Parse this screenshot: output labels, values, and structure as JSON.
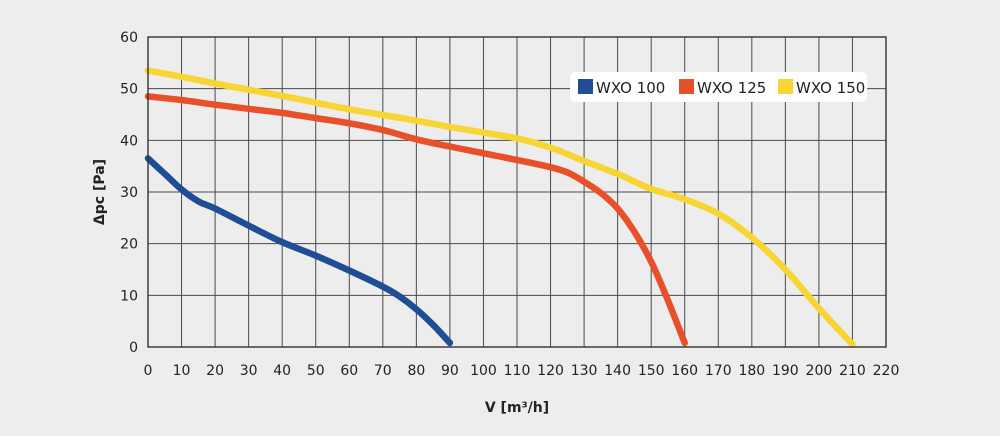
{
  "chart_data": {
    "type": "line",
    "title": "",
    "xlabel": "V [m³/h]",
    "ylabel": "Δpc [Pa]",
    "xlim": [
      0,
      220
    ],
    "ylim": [
      0,
      60
    ],
    "x_ticks": [
      0,
      10,
      20,
      30,
      40,
      50,
      60,
      70,
      80,
      90,
      100,
      110,
      120,
      130,
      140,
      150,
      160,
      170,
      180,
      190,
      200,
      210,
      220
    ],
    "y_ticks": [
      0,
      10,
      20,
      30,
      40,
      50,
      60
    ],
    "grid": true,
    "legend_position": "top-right",
    "series": [
      {
        "name": "WXO 100",
        "color": "#1f4e96",
        "points": [
          [
            0,
            36.5
          ],
          [
            5,
            33.5
          ],
          [
            10,
            30.5
          ],
          [
            15,
            28.2
          ],
          [
            20,
            26.8
          ],
          [
            30,
            23.5
          ],
          [
            40,
            20.3
          ],
          [
            50,
            17.7
          ],
          [
            60,
            14.8
          ],
          [
            70,
            11.7
          ],
          [
            75,
            9.8
          ],
          [
            80,
            7.3
          ],
          [
            85,
            4.3
          ],
          [
            90,
            0.8
          ]
        ]
      },
      {
        "name": "WXO 125",
        "color": "#e8502a",
        "points": [
          [
            0,
            48.5
          ],
          [
            10,
            47.8
          ],
          [
            20,
            46.9
          ],
          [
            30,
            46.1
          ],
          [
            40,
            45.3
          ],
          [
            50,
            44.3
          ],
          [
            60,
            43.3
          ],
          [
            70,
            42.0
          ],
          [
            80,
            40.2
          ],
          [
            90,
            38.8
          ],
          [
            100,
            37.5
          ],
          [
            110,
            36.2
          ],
          [
            120,
            34.8
          ],
          [
            125,
            33.8
          ],
          [
            130,
            32.0
          ],
          [
            135,
            29.8
          ],
          [
            140,
            26.8
          ],
          [
            145,
            22.3
          ],
          [
            150,
            16.5
          ],
          [
            155,
            9.0
          ],
          [
            160,
            0.8
          ]
        ]
      },
      {
        "name": "WXO 150",
        "color": "#f7d535",
        "points": [
          [
            0,
            53.5
          ],
          [
            10,
            52.3
          ],
          [
            20,
            51.0
          ],
          [
            30,
            49.8
          ],
          [
            40,
            48.6
          ],
          [
            50,
            47.3
          ],
          [
            60,
            46.0
          ],
          [
            70,
            44.9
          ],
          [
            80,
            43.8
          ],
          [
            90,
            42.6
          ],
          [
            100,
            41.5
          ],
          [
            110,
            40.4
          ],
          [
            120,
            38.6
          ],
          [
            130,
            36.0
          ],
          [
            140,
            33.5
          ],
          [
            150,
            30.6
          ],
          [
            160,
            28.6
          ],
          [
            170,
            25.8
          ],
          [
            180,
            21.2
          ],
          [
            190,
            15.0
          ],
          [
            200,
            7.5
          ],
          [
            210,
            0.5
          ]
        ]
      }
    ]
  }
}
